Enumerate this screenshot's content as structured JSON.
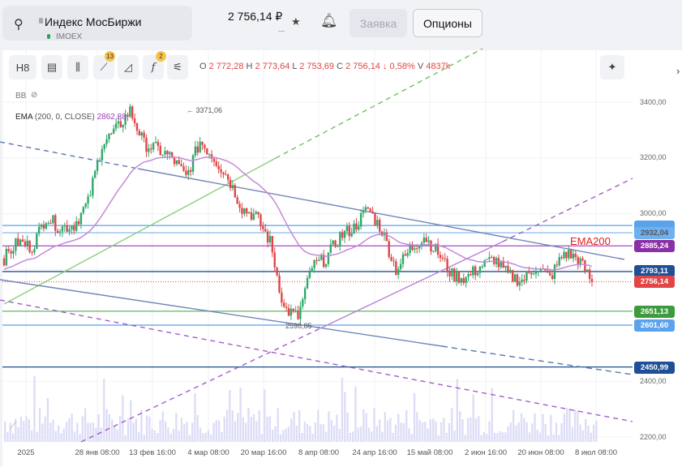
{
  "header": {
    "instrument_name": "Индекс МосБиржи",
    "ticker": "IMOEX",
    "price": "2 756,14 ₽",
    "order_button": "Заявка",
    "options_button": "Опционы"
  },
  "toolbar": {
    "interval": "H8",
    "drawings_badge": "13",
    "indicators_badge": "2"
  },
  "ohlc": {
    "o_label": "O",
    "o": "2 772,28",
    "h_label": "H",
    "h": "2 773,64",
    "l_label": "L",
    "l": "2 753,69",
    "c_label": "C",
    "c": "2 756,14",
    "change": "↓ 0,58%",
    "v_label": "V",
    "v": "4837k"
  },
  "indicators": {
    "bb": "BB",
    "ema_name": "EMA",
    "ema_params": "(200, 0, CLOSE)",
    "ema_value": "2862,88"
  },
  "annotations": {
    "high": "← 3371,06",
    "low": "2598,85 →",
    "ema_label": "EMA200"
  },
  "y_axis": [
    "3400,00",
    "3200,00",
    "3000,00",
    "2400,00",
    "2200,00"
  ],
  "x_axis": [
    "2025",
    "28 янв 08:00",
    "13 фев 16:00",
    "4 мар 08:00",
    "20 мар 16:00",
    "8 апр 08:00",
    "24 апр 16:00",
    "15 май 08:00",
    "2 июн 16:00",
    "20 июн 08:00",
    "8 июл 08:00"
  ],
  "price_labels": [
    {
      "text": "2932,04",
      "color": "#5aa3ec"
    },
    {
      "text": "2885,24",
      "color": "#8a2fa6"
    },
    {
      "text": "2793,11",
      "color": "#1f4f94"
    },
    {
      "text": "2756,14",
      "color": "#e04646"
    },
    {
      "text": "2651,13",
      "color": "#3d9a3d"
    },
    {
      "text": "2601,60",
      "color": "#5aa3ec"
    },
    {
      "text": "2450,99",
      "color": "#1f4f94"
    }
  ],
  "price_path": [
    2840,
    2900,
    2880,
    2990,
    2950,
    2960,
    3040,
    3250,
    3300,
    3370,
    3250,
    3230,
    3200,
    3130,
    3260,
    3200,
    3130,
    3020,
    2990,
    2900,
    2660,
    2630,
    2810,
    2840,
    2920,
    2950,
    3020,
    2940,
    2800,
    2870,
    2920,
    2860,
    2780,
    2770,
    2810,
    2840,
    2780,
    2760,
    2810,
    2770,
    2860,
    2840,
    2756
  ]
}
